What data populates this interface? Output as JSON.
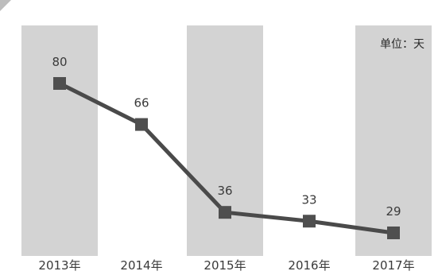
{
  "chart_data": {
    "type": "line",
    "categories": [
      "2013年",
      "2014年",
      "2015年",
      "2016年",
      "2017年"
    ],
    "series": [
      {
        "values": [
          80,
          66,
          36,
          33,
          29
        ]
      }
    ],
    "data_labels": [
      "80",
      "66",
      "36",
      "33",
      "29"
    ],
    "unit_label": "单位：天",
    "title": "",
    "xlabel": "",
    "ylabel": "",
    "ylim": [
      20,
      90
    ],
    "grid": false,
    "legend": "none",
    "colors": {
      "line": "#4a4a4a",
      "marker": "#4f4f4f",
      "band": "#d3d3d3",
      "background": "#ffffff",
      "text": "#3a3a3a"
    }
  }
}
